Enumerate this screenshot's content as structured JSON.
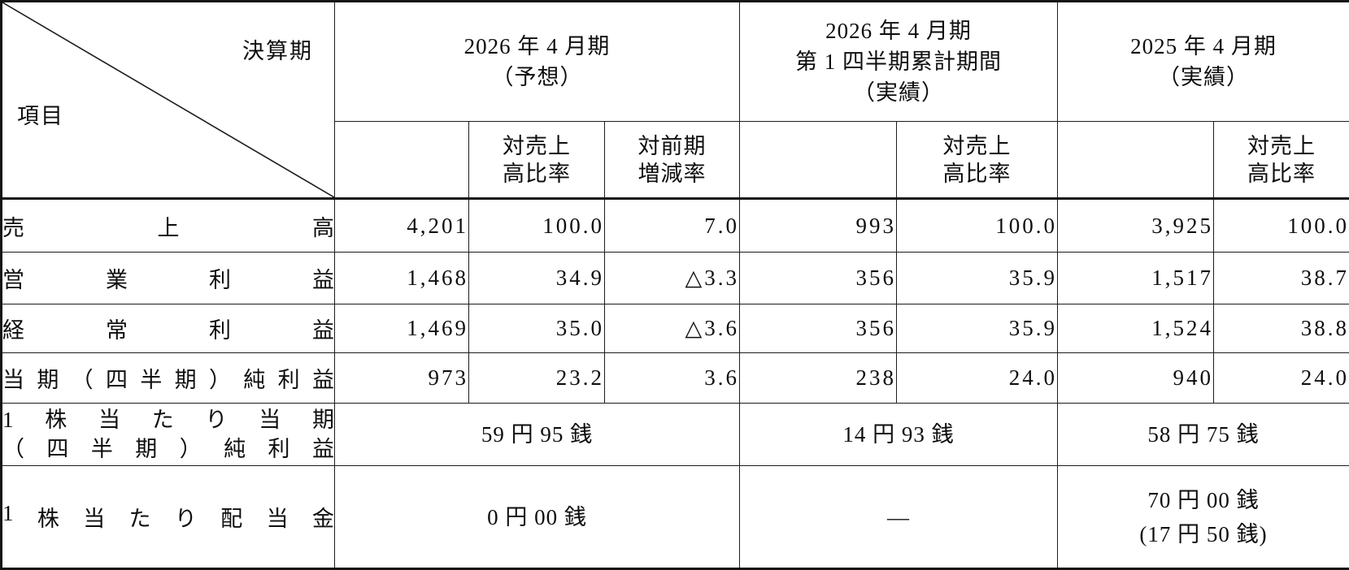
{
  "corner": {
    "col_axis_label": "決算期",
    "row_axis_label": "項目"
  },
  "column_groups": [
    {
      "title": "2026 年 4 月期\n（予想）",
      "sub_ratio_to_sales": "対売上\n高比率",
      "sub_yoy_change": "対前期\n増減率"
    },
    {
      "title": "2026 年 4 月期\n第 1 四半期累計期間\n（実績）",
      "sub_ratio_to_sales": "対売上\n高比率"
    },
    {
      "title": "2025 年 4 月期\n（実績）",
      "sub_ratio_to_sales": "対売上\n高比率"
    }
  ],
  "rows": [
    {
      "label": "売上高",
      "values": [
        "4,201",
        "100.0",
        "7.0",
        "993",
        "100.0",
        "3,925",
        "100.0"
      ]
    },
    {
      "label": "営業利益",
      "values": [
        "1,468",
        "34.9",
        "△3.3",
        "356",
        "35.9",
        "1,517",
        "38.7"
      ]
    },
    {
      "label": "経常利益",
      "values": [
        "1,469",
        "35.0",
        "△3.6",
        "356",
        "35.9",
        "1,524",
        "38.8"
      ]
    },
    {
      "label": "当期（四半期）純利益",
      "values": [
        "973",
        "23.2",
        "3.6",
        "238",
        "24.0",
        "940",
        "24.0"
      ]
    }
  ],
  "per_share_rows": [
    {
      "label_lines": [
        "1株当たり当期",
        "（四半期）純利益"
      ],
      "values": [
        "59 円 95 銭",
        "14 円 93 銭",
        "58 円 75 銭"
      ]
    },
    {
      "label_lines": [
        "1株当たり配当金"
      ],
      "values": [
        "0 円 00 銭",
        "―",
        "70 円 00 銭\n(17 円 50 銭)"
      ]
    }
  ]
}
